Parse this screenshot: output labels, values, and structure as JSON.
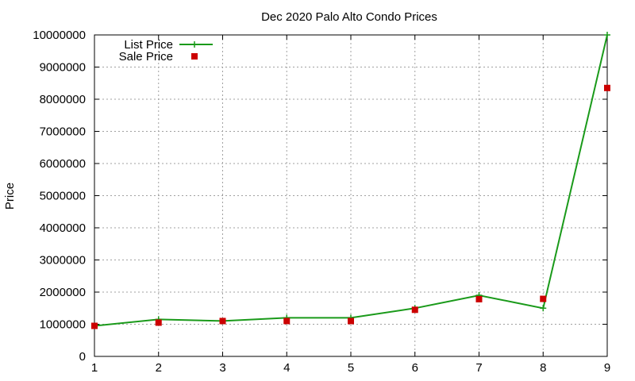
{
  "chart_data": {
    "type": "line",
    "title": "Dec 2020 Palo Alto Condo Prices",
    "xlabel": "",
    "ylabel": "Price",
    "x": [
      1,
      2,
      3,
      4,
      5,
      6,
      7,
      8,
      9
    ],
    "xlim": [
      1,
      9
    ],
    "ylim": [
      0,
      10000000
    ],
    "xticks": [
      "1",
      "2",
      "3",
      "4",
      "5",
      "6",
      "7",
      "8",
      "9"
    ],
    "yticks": [
      "0",
      "1000000",
      "2000000",
      "3000000",
      "4000000",
      "5000000",
      "6000000",
      "7000000",
      "8000000",
      "9000000",
      "10000000"
    ],
    "grid": true,
    "legend_position": "top-left",
    "series": [
      {
        "name": "List Price",
        "style": "line+cross",
        "color": "#1a9a1a",
        "values": [
          950000,
          1150000,
          1100000,
          1200000,
          1200000,
          1500000,
          1900000,
          1500000,
          10000000
        ]
      },
      {
        "name": "Sale Price",
        "style": "square",
        "color": "#cc0000",
        "values": [
          950000,
          1050000,
          1100000,
          1100000,
          1100000,
          1450000,
          1780000,
          1790000,
          8350000
        ]
      }
    ]
  }
}
